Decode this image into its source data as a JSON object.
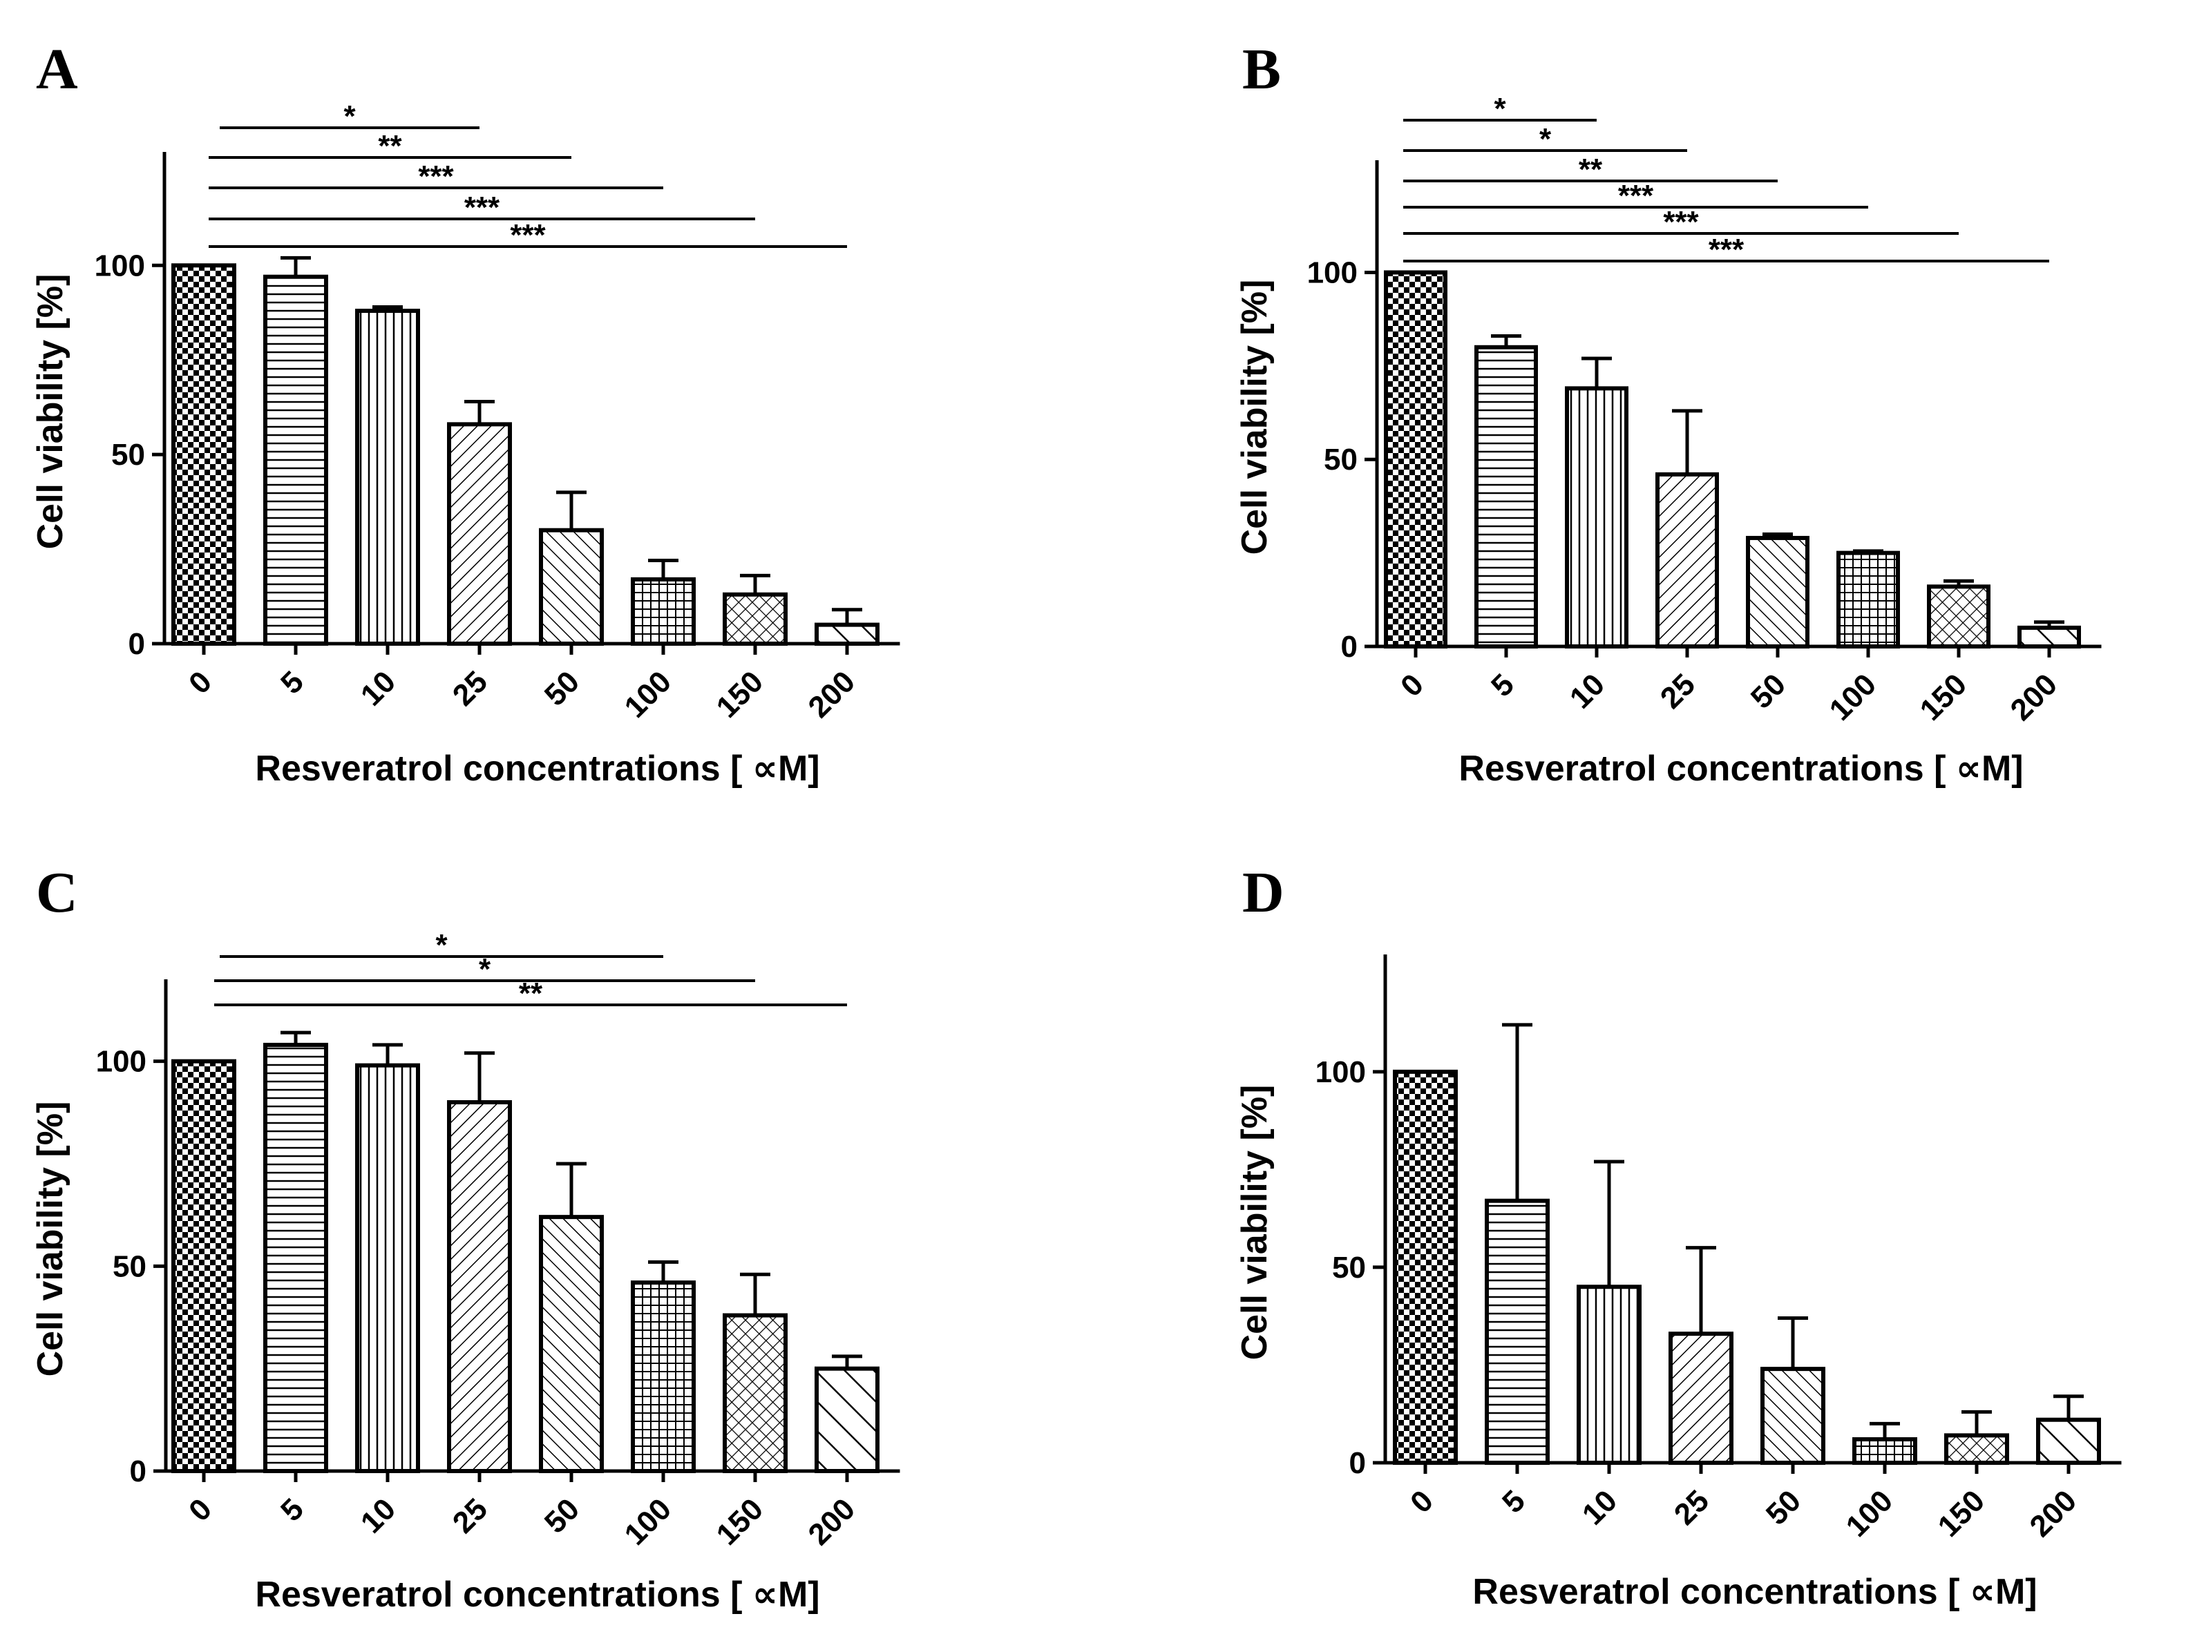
{
  "chart_data": [
    {
      "type": "bar",
      "panel": "A",
      "categories": [
        "0",
        "5",
        "10",
        "25",
        "50",
        "100",
        "150",
        "200"
      ],
      "values": [
        100,
        97,
        88,
        58,
        30,
        17,
        13,
        5
      ],
      "errors": [
        0,
        5,
        1,
        6,
        10,
        5,
        5,
        4
      ],
      "xlabel": "Resveratrol concentrations [ ∝M]",
      "ylabel": "Cell viability [%]",
      "ylim": [
        0,
        130
      ],
      "yticks": [
        0,
        50,
        100
      ],
      "significance": [
        {
          "from": "0",
          "to": "25",
          "label": "*"
        },
        {
          "from": "0",
          "to": "50",
          "label": "**"
        },
        {
          "from": "0",
          "to": "100",
          "label": "***"
        },
        {
          "from": "0",
          "to": "150",
          "label": "***"
        },
        {
          "from": "0",
          "to": "200",
          "label": "***"
        }
      ]
    },
    {
      "type": "bar",
      "panel": "B",
      "categories": [
        "0",
        "5",
        "10",
        "25",
        "50",
        "100",
        "150",
        "200"
      ],
      "values": [
        100,
        80,
        69,
        46,
        29,
        25,
        16,
        5
      ],
      "errors": [
        0,
        3,
        8,
        17,
        1,
        0.5,
        1.5,
        1.5
      ],
      "xlabel": "Resveratrol concentrations [ ∝M]",
      "ylabel": "Cell viability [%]",
      "ylim": [
        0,
        130
      ],
      "yticks": [
        0,
        50,
        100
      ],
      "significance": [
        {
          "from": "0",
          "to": "10",
          "label": "*"
        },
        {
          "from": "0",
          "to": "25",
          "label": "*"
        },
        {
          "from": "0",
          "to": "50",
          "label": "**"
        },
        {
          "from": "0",
          "to": "100",
          "label": "***"
        },
        {
          "from": "0",
          "to": "150",
          "label": "***"
        },
        {
          "from": "0",
          "to": "200",
          "label": "***"
        }
      ]
    },
    {
      "type": "bar",
      "panel": "C",
      "categories": [
        "0",
        "5",
        "10",
        "25",
        "50",
        "100",
        "150",
        "200"
      ],
      "values": [
        100,
        104,
        99,
        90,
        62,
        46,
        38,
        25
      ],
      "errors": [
        0,
        3,
        5,
        12,
        13,
        5,
        10,
        3
      ],
      "xlabel": "Resveratrol concentrations [ ∝M]",
      "ylabel": "Cell viability [%]",
      "ylim": [
        0,
        120
      ],
      "yticks": [
        0,
        50,
        100
      ],
      "significance": [
        {
          "from": "0",
          "to": "100",
          "label": "*"
        },
        {
          "from": "0",
          "to": "150",
          "label": "*"
        },
        {
          "from": "0",
          "to": "200",
          "label": "**"
        }
      ]
    },
    {
      "type": "bar",
      "panel": "D",
      "categories": [
        "0",
        "5",
        "10",
        "25",
        "50",
        "100",
        "150",
        "200"
      ],
      "values": [
        100,
        67,
        45,
        33,
        24,
        6,
        7,
        11
      ],
      "errors": [
        0,
        45,
        32,
        22,
        13,
        4,
        6,
        6
      ],
      "xlabel": "Resveratrol concentrations [ ∝M]",
      "ylabel": "Cell viability [%]",
      "ylim": [
        0,
        130
      ],
      "yticks": [
        0,
        50,
        100
      ],
      "significance": []
    }
  ]
}
